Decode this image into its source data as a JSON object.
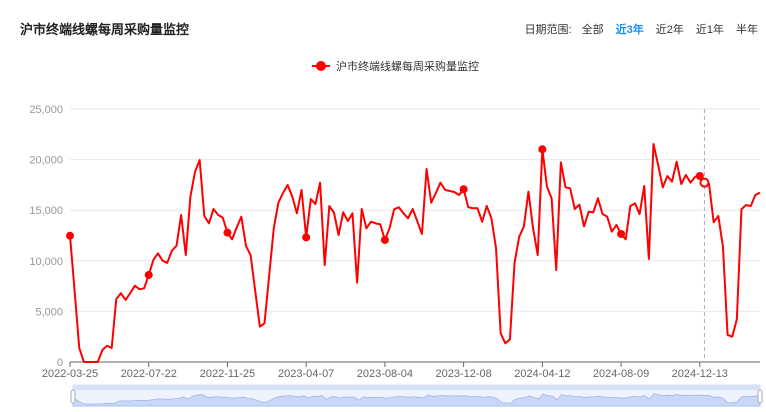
{
  "header": {
    "title": "沪市终端线螺每周采购量监控",
    "range_label": "日期范围:",
    "range_options": [
      "全部",
      "近3年",
      "近2年",
      "近1年",
      "半年"
    ],
    "range_selected": "近3年"
  },
  "colors": {
    "series": "#ff0000",
    "accent": "#1890ff",
    "grid": "#e6e9f0",
    "slider": "#c9d8f7"
  },
  "chart_data": {
    "type": "line",
    "title": "",
    "xlabel": "",
    "ylabel": "",
    "legend": {
      "entries": [
        "沪市终端线螺每周采购量监控"
      ],
      "placement": "top-center"
    },
    "ylim": [
      0,
      25000
    ],
    "y_ticks": [
      "0",
      "5,000",
      "10,000",
      "15,000",
      "20,000",
      "25,000"
    ],
    "grid": true,
    "x_tick_labels": [
      "2022-03-25",
      "2022-07-22",
      "2022-11-25",
      "2023-04-07",
      "2023-08-04",
      "2023-12-08",
      "2024-04-12",
      "2024-08-09",
      "2024-12-13"
    ],
    "x_tick_every": 17,
    "hover_index": 137,
    "series": [
      {
        "name": "沪市终端线螺每周采购量监控",
        "values": [
          12480,
          7000,
          1380,
          0,
          0,
          0,
          0,
          1190,
          1610,
          1380,
          6230,
          6800,
          6130,
          6800,
          7540,
          7200,
          7270,
          8600,
          10080,
          10740,
          10010,
          9800,
          11000,
          11480,
          14530,
          10570,
          16340,
          18800,
          19960,
          14430,
          13700,
          15120,
          14530,
          14250,
          12780,
          12120,
          13300,
          14360,
          11460,
          10570,
          7000,
          3490,
          3820,
          8500,
          13200,
          15740,
          16700,
          17490,
          16340,
          14690,
          17000,
          12320,
          16100,
          15610,
          17720,
          9580,
          15410,
          14760,
          12550,
          14790,
          13930,
          14690,
          7840,
          15120,
          13210,
          13860,
          13700,
          13600,
          12060,
          13210,
          15090,
          15290,
          14700,
          14200,
          15120,
          13900,
          12650,
          19070,
          15740,
          16700,
          17720,
          17000,
          16900,
          16800,
          16500,
          17070,
          15290,
          15200,
          15190,
          13860,
          15420,
          14200,
          11240,
          2830,
          1850,
          2240,
          9810,
          12380,
          13370,
          16830,
          13210,
          10570,
          21020,
          17320,
          16180,
          9090,
          19730,
          17260,
          17160,
          15120,
          15550,
          13400,
          14850,
          14790,
          16180,
          14620,
          14360,
          12880,
          13540,
          12650,
          12120,
          15420,
          15680,
          14620,
          17390,
          10180,
          21540,
          19470,
          17260,
          18380,
          17820,
          19790,
          17590,
          18480,
          17720,
          18310,
          18380,
          17720,
          17590,
          13800,
          14430,
          11390,
          2670,
          2500,
          4220,
          15090,
          15510,
          15410,
          16500,
          16730
        ]
      }
    ]
  }
}
